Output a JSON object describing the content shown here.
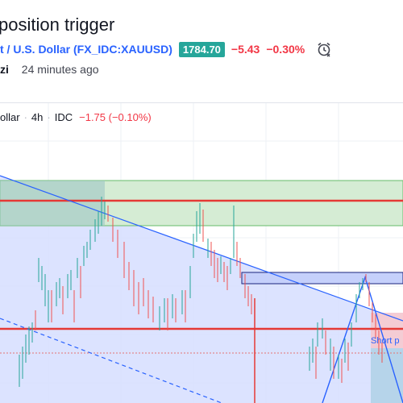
{
  "header": {
    "title": "position trigger",
    "symbol": "t / U.S. Dollar (FX_IDC:XAUUSD)",
    "price": "1784.70",
    "change_abs": "−5.43",
    "change_pct": "−0.30%",
    "author": "zi",
    "time_ago": "24 minutes ago"
  },
  "legend": {
    "symbol": "ollar",
    "interval": "4h",
    "source": "IDC",
    "change": "−1.75 (−0.10%)"
  },
  "chart": {
    "short_position_label": "Short p"
  },
  "colors": {
    "accent": "#2962ff",
    "up": "#26a69a",
    "down": "#f23645",
    "resistance": "#e53935",
    "zone_green": "#c8e6c9",
    "zone_blue": "#d4dcfb"
  }
}
